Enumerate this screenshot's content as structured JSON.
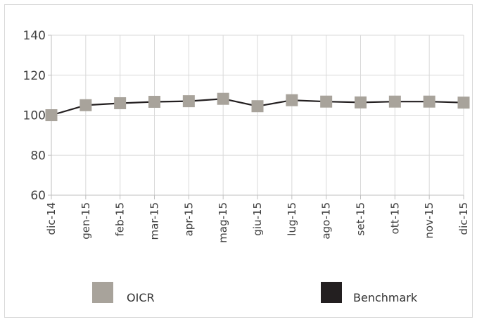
{
  "chart_data": {
    "type": "line",
    "categories": [
      "dic-14",
      "gen-15",
      "feb-15",
      "mar-15",
      "apr-15",
      "mag-15",
      "giu-15",
      "lug-15",
      "ago-15",
      "set-15",
      "ott-15",
      "nov-15",
      "dic-15"
    ],
    "series": [
      {
        "name": "OICR",
        "color": "#a8a39b",
        "marker": "square",
        "values": [
          100,
          105,
          106,
          106.7,
          107,
          108.2,
          104.5,
          107.5,
          106.8,
          106.4,
          106.8,
          106.8,
          106.3
        ]
      },
      {
        "name": "Benchmark",
        "color": "#231f20",
        "marker": "line",
        "values": [
          100,
          105,
          106,
          106.7,
          107,
          108.2,
          104.5,
          107.5,
          106.8,
          106.4,
          106.8,
          106.8,
          106.3
        ]
      }
    ],
    "y_ticks": [
      60,
      80,
      100,
      120,
      140
    ],
    "ylim": [
      60,
      140
    ],
    "grid": true,
    "legend_position": "bottom",
    "title": "",
    "xlabel": "",
    "ylabel": ""
  }
}
